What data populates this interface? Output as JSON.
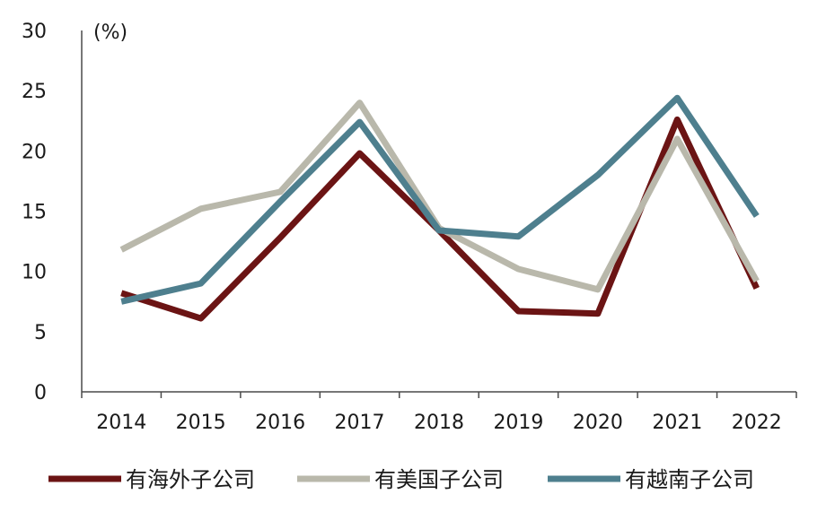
{
  "chart_data": {
    "type": "line",
    "title": "",
    "xlabel": "",
    "ylabel": "(%)",
    "ylim": [
      0,
      30
    ],
    "yticks": [
      "0",
      "5",
      "10",
      "15",
      "20",
      "25",
      "30"
    ],
    "categories": [
      "2014",
      "2015",
      "2016",
      "2017",
      "2018",
      "2019",
      "2020",
      "2021",
      "2022"
    ],
    "grid": false,
    "legend_position": "bottom",
    "series": [
      {
        "name": "有海外子公司",
        "color": "#6b1414",
        "values": [
          8.2,
          6.1,
          12.8,
          19.8,
          13.4,
          6.7,
          6.5,
          22.6,
          8.6
        ]
      },
      {
        "name": "有美国子公司",
        "color": "#b9b8ab",
        "values": [
          11.8,
          15.2,
          16.6,
          24.0,
          13.6,
          10.2,
          8.5,
          21.0,
          9.2
        ]
      },
      {
        "name": "有越南子公司",
        "color": "#4e7f8e",
        "values": [
          7.5,
          9.0,
          15.8,
          22.4,
          13.4,
          12.9,
          18.0,
          24.4,
          14.6
        ]
      }
    ]
  }
}
